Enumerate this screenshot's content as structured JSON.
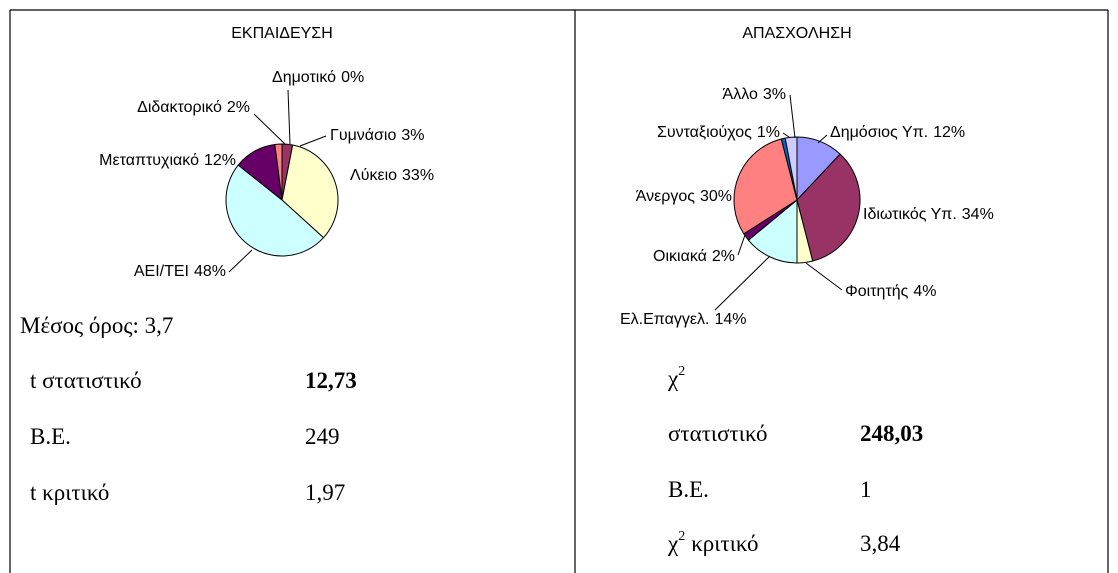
{
  "chart_data": [
    {
      "type": "pie",
      "title": "ΕΚΠΑΙΔΕΥΣΗ",
      "categories": [
        "Δημοτικό",
        "Γυμνάσιο",
        "Λύκειο",
        "ΑΕΙ/ΤΕΙ",
        "Μεταπτυχιακό",
        "Διδακτορικό"
      ],
      "values": [
        0,
        3,
        33,
        48,
        12,
        2
      ],
      "value_labels": [
        "0%",
        "3%",
        "33%",
        "48%",
        "12%",
        "2%"
      ],
      "colors": [
        "#9999ff",
        "#993366",
        "#ffffcc",
        "#ccffff",
        "#660066",
        "#ff8080"
      ]
    },
    {
      "type": "pie",
      "title": "ΑΠΑΣΧΟΛΗΣΗ",
      "categories": [
        "Δημόσιος Υπ.",
        "Ιδιωτικός Υπ.",
        "Φοιτητής",
        "Ελ.Επαγγελ.",
        "Οικιακά",
        "Άνεργος",
        "Συνταξιούχος",
        "Άλλο"
      ],
      "values": [
        12,
        34,
        4,
        14,
        2,
        30,
        1,
        3
      ],
      "value_labels": [
        "12%",
        "34%",
        "4%",
        "14%",
        "2%",
        "30%",
        "1%",
        "3%"
      ],
      "colors": [
        "#9999ff",
        "#993366",
        "#ffffcc",
        "#ccffff",
        "#660066",
        "#ff8080",
        "#0066cc",
        "#ccccff"
      ]
    }
  ],
  "left_stats": {
    "mean": "Μέσος όρος: 3,7",
    "rows": [
      {
        "label": "t στατιστικό",
        "value": "12,73"
      },
      {
        "label": "Β.Ε.",
        "value": "249"
      },
      {
        "label": "t κριτικό",
        "value": "1,97"
      }
    ]
  },
  "right_stats": {
    "symbol": "χ",
    "sup": "2",
    "rows": [
      {
        "label": "στατιστικό",
        "value": "248,03"
      },
      {
        "label": "Β.Ε.",
        "value": "1"
      },
      {
        "label": "κριτικό",
        "value": "3,84"
      }
    ]
  }
}
